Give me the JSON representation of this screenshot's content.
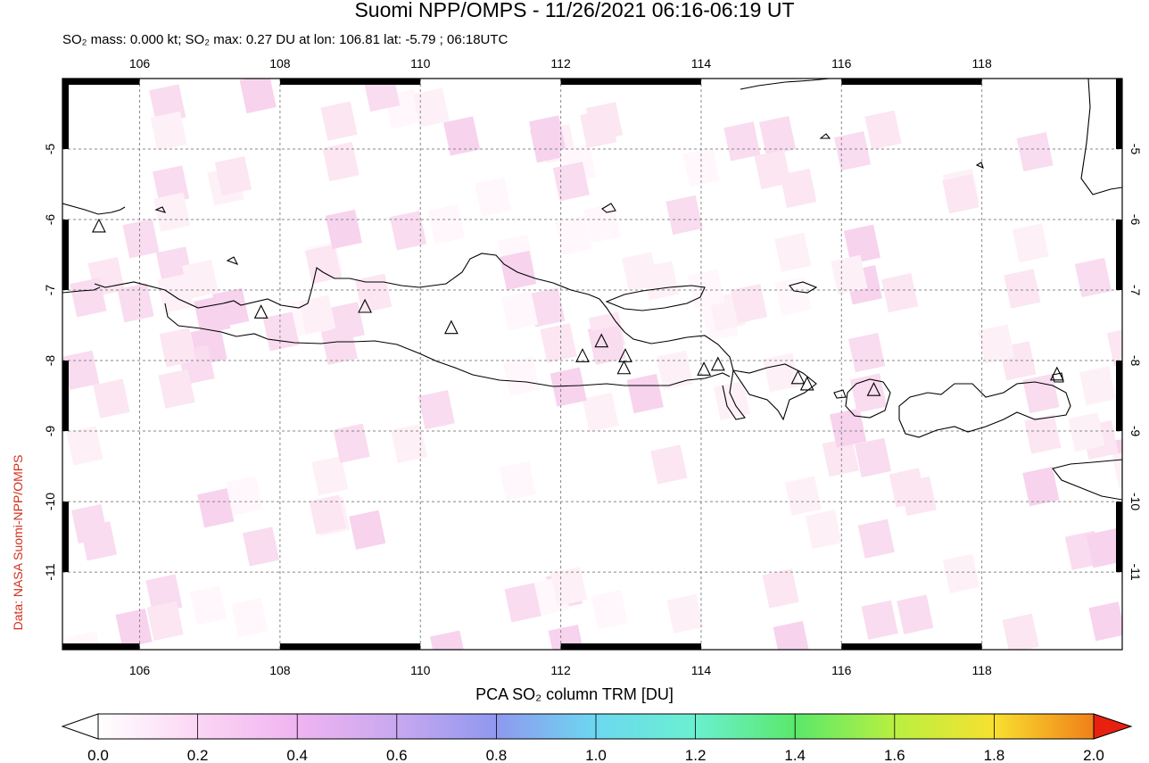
{
  "header": {
    "title": "Suomi NPP/OMPS - 11/26/2021 06:16-06:19 UT",
    "subtitle": "SO₂ mass: 0.000 kt; SO₂ max: 0.27 DU at lon: 106.81 lat: -5.79 ; 06:18UTC"
  },
  "credit": "Data: NASA Suomi-NPP/OMPS",
  "map": {
    "lon_range": [
      104.9,
      120.0
    ],
    "lat_range": [
      -12.1,
      -4.0
    ],
    "lon_ticks": [
      "106",
      "108",
      "110",
      "112",
      "114",
      "116",
      "118"
    ],
    "lat_ticks": [
      "-5",
      "-6",
      "-7",
      "-8",
      "-9",
      "-10",
      "-11"
    ],
    "grid": "dashed",
    "volcano_symbol": "triangle-icon",
    "volcanoes": [
      {
        "lon": 105.42,
        "lat": -6.1
      },
      {
        "lon": 107.73,
        "lat": -7.32
      },
      {
        "lon": 109.21,
        "lat": -7.24
      },
      {
        "lon": 110.44,
        "lat": -7.54
      },
      {
        "lon": 112.31,
        "lat": -7.94
      },
      {
        "lon": 112.58,
        "lat": -7.73
      },
      {
        "lon": 112.92,
        "lat": -7.94
      },
      {
        "lon": 112.9,
        "lat": -8.11
      },
      {
        "lon": 114.04,
        "lat": -8.13
      },
      {
        "lon": 114.24,
        "lat": -8.06
      },
      {
        "lon": 115.38,
        "lat": -8.25
      },
      {
        "lon": 115.51,
        "lat": -8.34
      },
      {
        "lon": 116.46,
        "lat": -8.42
      },
      {
        "lon": 119.07,
        "lat": -8.2
      }
    ]
  },
  "colorbar": {
    "label": "PCA SO₂ column TRM [DU]",
    "ticks": [
      "0.0",
      "0.2",
      "0.4",
      "0.6",
      "0.8",
      "1.0",
      "1.2",
      "1.4",
      "1.6",
      "1.8",
      "2.0"
    ],
    "colors": [
      "#ffffff",
      "#fbd6f4",
      "#f0b4f0",
      "#c8a8f0",
      "#8f98ef",
      "#6cd8f0",
      "#6af0d0",
      "#5ae86a",
      "#b8f040",
      "#f8e030",
      "#f08018",
      "#e82010"
    ]
  }
}
